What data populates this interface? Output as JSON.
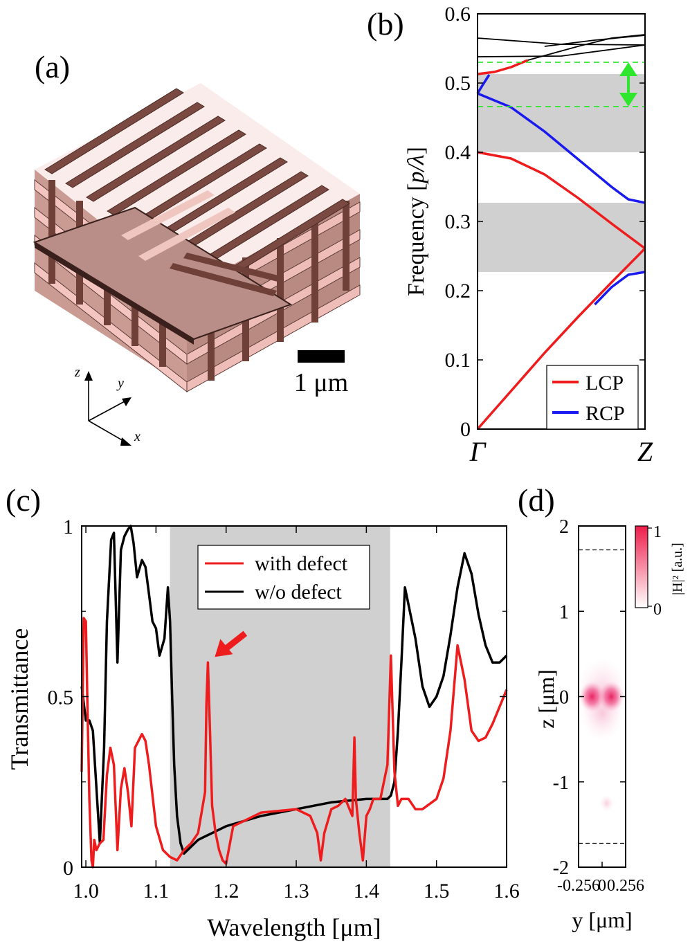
{
  "panel_a": {
    "label": "(a)",
    "scalebar_label": "1 μm",
    "axes": {
      "z": "z",
      "y": "y",
      "x": "x"
    }
  },
  "chart_data": [
    {
      "id": "b",
      "panel_label": "(b)",
      "type": "line",
      "ylabel_main": "Frequency [",
      "ylabel_italic": "p/λ",
      "ylabel_end": "]",
      "xticks": [
        "Γ",
        "Z"
      ],
      "ylim": [
        0,
        0.6
      ],
      "yticks": [
        "0",
        "0.1",
        "0.2",
        "0.3",
        "0.4",
        "0.5",
        "0.6"
      ],
      "bandgaps": [
        [
          0.227,
          0.327
        ],
        [
          0.4,
          0.513
        ]
      ],
      "dashed_lines": [
        0.466,
        0.53
      ],
      "arrow_range": [
        0.466,
        0.53
      ],
      "legend": [
        {
          "name": "LCP",
          "color": "#ee1c1c"
        },
        {
          "name": "RCP",
          "color": "#1a1aee"
        }
      ],
      "series": [
        {
          "name": "LCP",
          "color": "#ee1c1c",
          "x": [
            0,
            0.2,
            0.4,
            0.6,
            0.8,
            1.0
          ],
          "y": [
            0,
            0.055,
            0.11,
            0.162,
            0.212,
            0.261
          ]
        },
        {
          "name": "LCP",
          "color": "#ee1c1c",
          "x": [
            0,
            0.2,
            0.4,
            0.6,
            0.8,
            1.0
          ],
          "y": [
            0.4,
            0.391,
            0.368,
            0.334,
            0.297,
            0.261
          ]
        },
        {
          "name": "LCP",
          "color": "#ee1c1c",
          "x": [
            0,
            0.1,
            0.2,
            0.3
          ],
          "y": [
            0.513,
            0.516,
            0.523,
            0.533
          ]
        },
        {
          "name": "RCP",
          "color": "#1a1aee",
          "x": [
            0.7,
            0.8,
            0.9,
            1.0
          ],
          "y": [
            0.18,
            0.205,
            0.223,
            0.227
          ]
        },
        {
          "name": "RCP",
          "color": "#1a1aee",
          "x": [
            0,
            0.2,
            0.4,
            0.6,
            0.8,
            0.9,
            1.0
          ],
          "y": [
            0.485,
            0.465,
            0.43,
            0.39,
            0.35,
            0.332,
            0.327
          ]
        },
        {
          "name": "RCP",
          "color": "#1a1aee",
          "x": [
            0,
            0.03,
            0.07
          ],
          "y": [
            0.485,
            0.497,
            0.512
          ]
        },
        {
          "color": "#000000",
          "x": [
            0,
            0.5,
            1.0
          ],
          "y": [
            0.565,
            0.556,
            0.555
          ]
        },
        {
          "color": "#000000",
          "x": [
            0,
            0.5,
            1.0
          ],
          "y": [
            0.538,
            0.539,
            0.555
          ]
        },
        {
          "color": "#000000",
          "x": [
            0.3,
            0.6,
            0.8,
            1.0
          ],
          "y": [
            0.533,
            0.553,
            0.565,
            0.57
          ]
        },
        {
          "color": "#000000",
          "x": [
            0.4,
            0.7,
            1.0
          ],
          "y": [
            0.553,
            0.562,
            0.569
          ]
        }
      ]
    },
    {
      "id": "c",
      "panel_label": "(c)",
      "type": "line",
      "xlabel": "Wavelength [μm]",
      "ylabel": "Transmittance",
      "xlim": [
        0.994,
        1.6
      ],
      "ylim": [
        0,
        1
      ],
      "xticks": [
        "1.0",
        "1.1",
        "1.2",
        "1.3",
        "1.4",
        "1.5",
        "1.6"
      ],
      "yticks": [
        "0",
        "0.5",
        "1"
      ],
      "bandgap": [
        1.12,
        1.434
      ],
      "annotation_arrow_target": [
        1.174,
        0.6
      ],
      "legend": [
        {
          "name": "with defect",
          "color": "#ee1c1c"
        },
        {
          "name": "w/o defect",
          "color": "#000000"
        }
      ],
      "series": [
        {
          "name": "w/o defect",
          "color": "#000000",
          "x": [
            0.994,
            1.0,
            1.005,
            1.01,
            1.016,
            1.02,
            1.026,
            1.03,
            1.036,
            1.04,
            1.045,
            1.05,
            1.055,
            1.06,
            1.064,
            1.068,
            1.073,
            1.08,
            1.085,
            1.09,
            1.095,
            1.1,
            1.105,
            1.112,
            1.117,
            1.12,
            1.123,
            1.126,
            1.13,
            1.135,
            1.14,
            1.15,
            1.16,
            1.17,
            1.18,
            1.2,
            1.25,
            1.3,
            1.35,
            1.4,
            1.43,
            1.435,
            1.44,
            1.445,
            1.45,
            1.455,
            1.46,
            1.47,
            1.48,
            1.49,
            1.5,
            1.51,
            1.52,
            1.53,
            1.54,
            1.55,
            1.56,
            1.57,
            1.58,
            1.59,
            1.6
          ],
          "y": [
            0.53,
            0.43,
            0.43,
            0.4,
            0.2,
            0.07,
            0.35,
            0.72,
            0.96,
            0.98,
            0.6,
            0.93,
            0.97,
            0.99,
            1.0,
            0.95,
            0.85,
            0.9,
            0.88,
            0.8,
            0.72,
            0.7,
            0.62,
            0.67,
            0.82,
            0.72,
            0.5,
            0.3,
            0.15,
            0.07,
            0.04,
            0.06,
            0.08,
            0.09,
            0.1,
            0.12,
            0.15,
            0.17,
            0.19,
            0.2,
            0.2,
            0.21,
            0.25,
            0.4,
            0.6,
            0.82,
            0.77,
            0.67,
            0.53,
            0.47,
            0.5,
            0.56,
            0.68,
            0.82,
            0.92,
            0.86,
            0.74,
            0.65,
            0.6,
            0.6,
            0.62
          ]
        },
        {
          "name": "with defect",
          "color": "#ee1c1c",
          "x": [
            0.994,
            0.997,
            1.0,
            1.002,
            1.005,
            1.008,
            1.01,
            1.012,
            1.015,
            1.02,
            1.025,
            1.03,
            1.035,
            1.04,
            1.045,
            1.05,
            1.055,
            1.06,
            1.065,
            1.07,
            1.08,
            1.085,
            1.09,
            1.1,
            1.11,
            1.12,
            1.13,
            1.14,
            1.15,
            1.16,
            1.17,
            1.172,
            1.174,
            1.177,
            1.18,
            1.185,
            1.19,
            1.195,
            1.2,
            1.21,
            1.25,
            1.3,
            1.32,
            1.33,
            1.335,
            1.34,
            1.35,
            1.36,
            1.37,
            1.38,
            1.383,
            1.385,
            1.39,
            1.395,
            1.4,
            1.405,
            1.41,
            1.42,
            1.43,
            1.435,
            1.44,
            1.445,
            1.45,
            1.46,
            1.47,
            1.48,
            1.5,
            1.51,
            1.52,
            1.53,
            1.54,
            1.55,
            1.56,
            1.57,
            1.58,
            1.6
          ],
          "y": [
            0.28,
            0.73,
            0.72,
            0.5,
            0.2,
            0.02,
            0.0,
            0.08,
            0.05,
            0.07,
            0.08,
            0.27,
            0.35,
            0.3,
            0.05,
            0.23,
            0.29,
            0.22,
            0.12,
            0.35,
            0.39,
            0.37,
            0.3,
            0.12,
            0.05,
            0.03,
            0.02,
            0.05,
            0.07,
            0.1,
            0.22,
            0.48,
            0.6,
            0.4,
            0.18,
            0.1,
            0.05,
            0.02,
            0.01,
            0.12,
            0.16,
            0.17,
            0.15,
            0.1,
            0.02,
            0.1,
            0.17,
            0.18,
            0.2,
            0.15,
            0.38,
            0.2,
            0.1,
            0.02,
            0.15,
            0.17,
            0.2,
            0.2,
            0.3,
            0.62,
            0.28,
            0.18,
            0.2,
            0.2,
            0.17,
            0.17,
            0.2,
            0.26,
            0.4,
            0.65,
            0.55,
            0.4,
            0.37,
            0.38,
            0.42,
            0.52
          ]
        }
      ]
    },
    {
      "id": "d",
      "panel_label": "(d)",
      "type": "heatmap",
      "xlabel": "y [μm]",
      "ylabel": "z [μm]",
      "xlim": [
        -0.256,
        0.256
      ],
      "ylim": [
        -2,
        2
      ],
      "xticks": [
        "-0.256",
        "0",
        "0.256"
      ],
      "yticks": [
        "-2",
        "-1",
        "0",
        "1",
        "2"
      ],
      "dashed_lines": [
        1.72,
        -1.72
      ],
      "colorbar": {
        "label": "|H|² [a.u.]",
        "min_label": "0",
        "max_label": "1",
        "color_max": "#ee1c4a",
        "color_min": "#ffffff"
      },
      "hotspots": [
        {
          "y": -0.11,
          "z": 0.0,
          "intensity": 1.0
        },
        {
          "y": 0.1,
          "z": 0.0,
          "intensity": 1.0
        }
      ]
    }
  ]
}
